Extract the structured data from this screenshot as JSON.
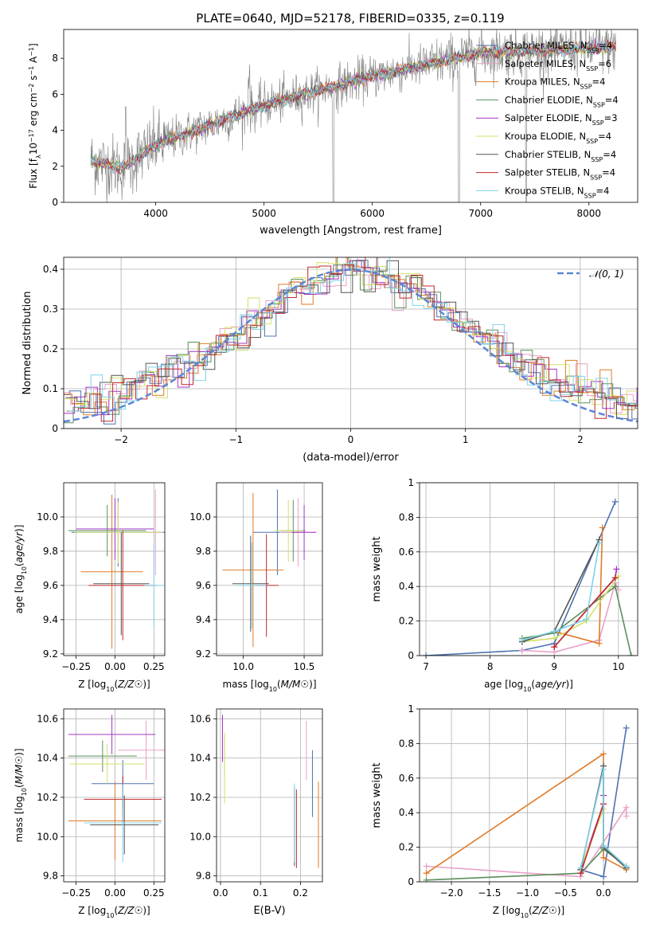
{
  "title": "PLATE=0640, MJD=52178, FIBERID=0335, z=0.119",
  "colors": [
    "#1f77b4",
    "#ff7f0e",
    "#2ca02c",
    "#d62728",
    "#9467bd",
    "#8c564b",
    "#e377c2",
    "#7f7f7f",
    "#bcbd22",
    "#17becf"
  ],
  "models": [
    {
      "color": "#4c72b0",
      "label_main": "Chabrier MILES, N",
      "label_sub": "SSP",
      "label_end": "=4"
    },
    {
      "color": "#e8a1c8",
      "label_main": "Salpeter MILES, N",
      "label_sub": "SSP",
      "label_end": "=6"
    },
    {
      "color": "#e07b28",
      "label_main": "Kroupa MILES, N",
      "label_sub": "SSP",
      "label_end": "=4"
    },
    {
      "color": "#5a8f5a",
      "label_main": "Chabrier ELODIE, N",
      "label_sub": "SSP",
      "label_end": "=4"
    },
    {
      "color": "#a335c0",
      "label_main": "Salpeter ELODIE, N",
      "label_sub": "SSP",
      "label_end": "=3"
    },
    {
      "color": "#d4e06a",
      "label_main": "Kroupa ELODIE, N",
      "label_sub": "SSP",
      "label_end": "=4"
    },
    {
      "color": "#555555",
      "label_main": "Chabrier STELIB, N",
      "label_sub": "SSP",
      "label_end": "=4"
    },
    {
      "color": "#c0282d",
      "label_main": "Salpeter STELIB, N",
      "label_sub": "SSP",
      "label_end": "=4"
    },
    {
      "color": "#7fd2e8",
      "label_main": "Kroupa STELIB, N",
      "label_sub": "SSP",
      "label_end": "=4"
    }
  ],
  "chart_data": [
    {
      "id": "spectrum",
      "type": "line",
      "xlabel": "wavelength [Angstrom, rest frame]",
      "ylabel_main": "Flux [f",
      "ylabel_rest": "10",
      "ylabel_exp": "−17",
      "ylabel_unit": " erg cm",
      "ylabel_u1": "−2",
      "ylabel_s": " s",
      "ylabel_u2": "−1",
      "ylabel_a": " A",
      "ylabel_u3": "−1",
      "ylabel_close": "]",
      "xlim": [
        3150,
        8450
      ],
      "ylim": [
        0,
        9.6
      ],
      "xticks": [
        4000,
        5000,
        6000,
        7000,
        8000
      ],
      "yticks": [
        0,
        2,
        4,
        6,
        8
      ],
      "data_color": "#808080",
      "model_color": "#7fd2e8",
      "data_range": [
        3400,
        8250
      ]
    },
    {
      "id": "residuals",
      "type": "histogram",
      "xlabel": "(data-model)/error",
      "ylabel": "Normed distribution",
      "xlim": [
        -2.5,
        2.5
      ],
      "ylim": [
        0,
        0.43
      ],
      "xticks": [
        -2,
        -1,
        0,
        1,
        2
      ],
      "yticks": [
        0.0,
        0.1,
        0.2,
        0.3,
        0.4
      ],
      "reference_curve": "gaussian",
      "reference_label": "𝒩(0, 1)",
      "grid": true
    },
    {
      "id": "age_Z",
      "type": "scatter",
      "xlabel": "Z [log10(Z/Z☉)]",
      "ylabel": "age  [log10(age/yr)]",
      "xlim": [
        -0.33,
        0.32
      ],
      "ylim": [
        9.19,
        10.2
      ],
      "xticks": [
        -0.25,
        0.0,
        0.25
      ],
      "xtick_labels": [
        "−0.25",
        "0.00",
        "0.25"
      ],
      "yticks": [
        9.2,
        9.4,
        9.6,
        9.8,
        10.0
      ],
      "ytick_labels": [
        "9.2",
        "9.4",
        "9.6",
        "9.8",
        "10.0"
      ],
      "points": [
        {
          "x": 0.02,
          "y": 9.91,
          "xerr": 0.3,
          "yerr": 0.2
        },
        {
          "x": 0.26,
          "y": 9.91,
          "xerr": 0.05,
          "yerr": 0.25
        },
        {
          "x": -0.02,
          "y": 9.68,
          "xerr": 0.2,
          "yerr": 0.45
        },
        {
          "x": -0.05,
          "y": 9.92,
          "xerr": 0.25,
          "yerr": 0.15
        },
        {
          "x": 0.0,
          "y": 9.93,
          "xerr": 0.25,
          "yerr": 0.18
        },
        {
          "x": 0.02,
          "y": 9.91,
          "xerr": 0.28,
          "yerr": 0.18
        },
        {
          "x": 0.04,
          "y": 9.61,
          "xerr": 0.18,
          "yerr": 0.3
        },
        {
          "x": 0.05,
          "y": 9.6,
          "xerr": 0.22,
          "yerr": 0.32
        },
        {
          "x": 0.25,
          "y": 9.6,
          "xerr": 0.06,
          "yerr": 0.25
        }
      ]
    },
    {
      "id": "age_mass",
      "type": "scatter",
      "xlabel": "mass [log10(M/M☉)]",
      "ylabel": "",
      "xlim": [
        9.78,
        10.65
      ],
      "ylim": [
        9.19,
        10.2
      ],
      "xticks": [
        10.0,
        10.5
      ],
      "xtick_labels": [
        "10.0",
        "10.5"
      ],
      "yticks": [
        9.2,
        9.4,
        9.6,
        9.8,
        10.0
      ],
      "ytick_labels": [
        "9.2",
        "9.4",
        "9.6",
        "9.8",
        "10.0"
      ],
      "points": [
        {
          "x": 10.28,
          "y": 9.91,
          "xerr": 0.2,
          "yerr": 0.25
        },
        {
          "x": 10.45,
          "y": 9.91,
          "xerr": 0.15,
          "yerr": 0.2
        },
        {
          "x": 10.08,
          "y": 9.69,
          "xerr": 0.25,
          "yerr": 0.45
        },
        {
          "x": 10.41,
          "y": 9.92,
          "xerr": 0.1,
          "yerr": 0.18
        },
        {
          "x": 10.5,
          "y": 9.91,
          "xerr": 0.1,
          "yerr": 0.16
        },
        {
          "x": 10.37,
          "y": 9.92,
          "xerr": 0.12,
          "yerr": 0.18
        },
        {
          "x": 10.06,
          "y": 9.61,
          "xerr": 0.15,
          "yerr": 0.28
        },
        {
          "x": 10.19,
          "y": 9.6,
          "xerr": 0.1,
          "yerr": 0.3
        },
        {
          "x": 10.07,
          "y": 9.6,
          "xerr": 0.12,
          "yerr": 0.25
        }
      ]
    },
    {
      "id": "weight_age",
      "type": "line",
      "xlabel": "age  [log10(age/yr)]",
      "ylabel": "mass weight",
      "xlim": [
        6.9,
        10.3
      ],
      "ylim": [
        0,
        1.0
      ],
      "xticks": [
        7,
        8,
        9,
        10
      ],
      "yticks": [
        0.0,
        0.2,
        0.4,
        0.6,
        0.8,
        1.0
      ],
      "series": [
        {
          "x": [
            7.0,
            8.5,
            9.0,
            9.95
          ],
          "y": [
            0.0,
            0.03,
            0.07,
            0.89
          ]
        },
        {
          "x": [
            8.5,
            9.0,
            9.7,
            9.95,
            10.0
          ],
          "y": [
            0.03,
            0.02,
            0.09,
            0.42,
            0.38
          ]
        },
        {
          "x": [
            8.5,
            9.0,
            9.7,
            9.75
          ],
          "y": [
            0.08,
            0.14,
            0.07,
            0.74
          ]
        },
        {
          "x": [
            8.5,
            9.0,
            9.95,
            10.2
          ],
          "y": [
            0.1,
            0.13,
            0.4,
            0.0
          ]
        },
        {
          "x": [
            9.0,
            9.95,
            9.97
          ],
          "y": [
            0.05,
            0.45,
            0.5
          ]
        },
        {
          "x": [
            8.5,
            9.0,
            9.5,
            10.0
          ],
          "y": [
            0.08,
            0.1,
            0.2,
            0.46
          ]
        },
        {
          "x": [
            8.5,
            9.0,
            9.7
          ],
          "y": [
            0.08,
            0.14,
            0.67
          ]
        },
        {
          "x": [
            9.0,
            9.95
          ],
          "y": [
            0.05,
            0.45
          ]
        },
        {
          "x": [
            8.5,
            9.0,
            9.5,
            9.7
          ],
          "y": [
            0.09,
            0.14,
            0.21,
            0.65
          ]
        }
      ]
    },
    {
      "id": "mass_Z",
      "type": "scatter",
      "xlabel": "Z [log10(Z/Z☉)]",
      "ylabel": "mass [log10(M/M☉)]",
      "xlim": [
        -0.33,
        0.32
      ],
      "ylim": [
        9.77,
        10.65
      ],
      "xticks": [
        -0.25,
        0.0,
        0.25
      ],
      "xtick_labels": [
        "−0.25",
        "0.00",
        "0.25"
      ],
      "yticks": [
        9.8,
        10.0,
        10.2,
        10.4,
        10.6
      ],
      "ytick_labels": [
        "9.8",
        "10.0",
        "10.2",
        "10.4",
        "10.6"
      ],
      "points": [
        {
          "x": 0.05,
          "y": 10.27,
          "xerr": 0.2,
          "yerr": 0.12
        },
        {
          "x": 0.2,
          "y": 10.44,
          "xerr": 0.18,
          "yerr": 0.15
        },
        {
          "x": 0.0,
          "y": 10.08,
          "xerr": 0.3,
          "yerr": 0.2
        },
        {
          "x": -0.08,
          "y": 10.41,
          "xerr": 0.22,
          "yerr": 0.08
        },
        {
          "x": -0.02,
          "y": 10.52,
          "xerr": 0.28,
          "yerr": 0.1
        },
        {
          "x": -0.05,
          "y": 10.37,
          "xerr": 0.24,
          "yerr": 0.1
        },
        {
          "x": 0.06,
          "y": 10.06,
          "xerr": 0.22,
          "yerr": 0.15
        },
        {
          "x": 0.05,
          "y": 10.19,
          "xerr": 0.25,
          "yerr": 0.12
        },
        {
          "x": 0.05,
          "y": 10.07,
          "xerr": 0.25,
          "yerr": 0.2
        }
      ]
    },
    {
      "id": "mass_ebv",
      "type": "scatter",
      "xlabel": "E(B-V)",
      "ylabel": "",
      "xlim": [
        -0.01,
        0.255
      ],
      "ylim": [
        9.77,
        10.65
      ],
      "xticks": [
        0.0,
        0.1,
        0.2
      ],
      "xtick_labels": [
        "0.0",
        "0.1",
        "0.2"
      ],
      "yticks": [
        9.8,
        10.0,
        10.2,
        10.4,
        10.6
      ],
      "ytick_labels": [
        "9.8",
        "10.0",
        "10.2",
        "10.4",
        "10.6"
      ],
      "points": [
        {
          "x": 0.23,
          "y": 10.27,
          "yerr": 0.17
        },
        {
          "x": 0.215,
          "y": 10.44,
          "yerr": 0.15
        },
        {
          "x": 0.245,
          "y": 10.06,
          "yerr": 0.22
        },
        {
          "x": 0.01,
          "y": 10.41,
          "yerr": 0.1
        },
        {
          "x": 0.005,
          "y": 10.5,
          "yerr": 0.12
        },
        {
          "x": 0.01,
          "y": 10.35,
          "yerr": 0.18
        },
        {
          "x": 0.185,
          "y": 10.05,
          "yerr": 0.2
        },
        {
          "x": 0.19,
          "y": 10.04,
          "yerr": 0.2
        },
        {
          "x": 0.185,
          "y": 10.07,
          "yerr": 0.2
        }
      ]
    },
    {
      "id": "weight_Z",
      "type": "line",
      "xlabel": "Z [log10(Z/Z☉)]",
      "ylabel": "mass weight",
      "xlim": [
        -2.42,
        0.45
      ],
      "ylim": [
        0,
        1.0
      ],
      "xticks": [
        -2.0,
        -1.5,
        -1.0,
        -0.5,
        0.0
      ],
      "xtick_labels": [
        "−2.0",
        "−1.5",
        "−1.0",
        "−0.5",
        "0.0"
      ],
      "yticks": [
        0.0,
        0.2,
        0.4,
        0.6,
        0.8,
        1.0
      ],
      "series": [
        {
          "x": [
            -0.3,
            0.0,
            0.3
          ],
          "y": [
            0.07,
            0.03,
            0.89
          ]
        },
        {
          "x": [
            -2.33,
            -0.3,
            0.3,
            0.3
          ],
          "y": [
            0.09,
            0.03,
            0.43,
            0.38
          ]
        },
        {
          "x": [
            -2.33,
            0.0,
            0.0,
            0.3
          ],
          "y": [
            0.05,
            0.74,
            0.14,
            0.07
          ]
        },
        {
          "x": [
            -2.33,
            -0.3,
            0.0,
            0.3
          ],
          "y": [
            0.01,
            0.05,
            0.19,
            0.09
          ]
        },
        {
          "x": [
            -0.3,
            0.0,
            0.0
          ],
          "y": [
            0.07,
            0.45,
            0.5
          ]
        },
        {
          "x": [
            -0.3,
            0.0,
            0.0,
            0.3
          ],
          "y": [
            0.08,
            0.42,
            0.2,
            0.09
          ]
        },
        {
          "x": [
            -0.3,
            0.0,
            0.0,
            0.3
          ],
          "y": [
            0.07,
            0.67,
            0.2,
            0.08
          ]
        },
        {
          "x": [
            -0.3,
            0.0
          ],
          "y": [
            0.05,
            0.45
          ]
        },
        {
          "x": [
            -0.3,
            0.0,
            0.0,
            0.3
          ],
          "y": [
            0.08,
            0.65,
            0.21,
            0.09
          ]
        }
      ]
    }
  ]
}
